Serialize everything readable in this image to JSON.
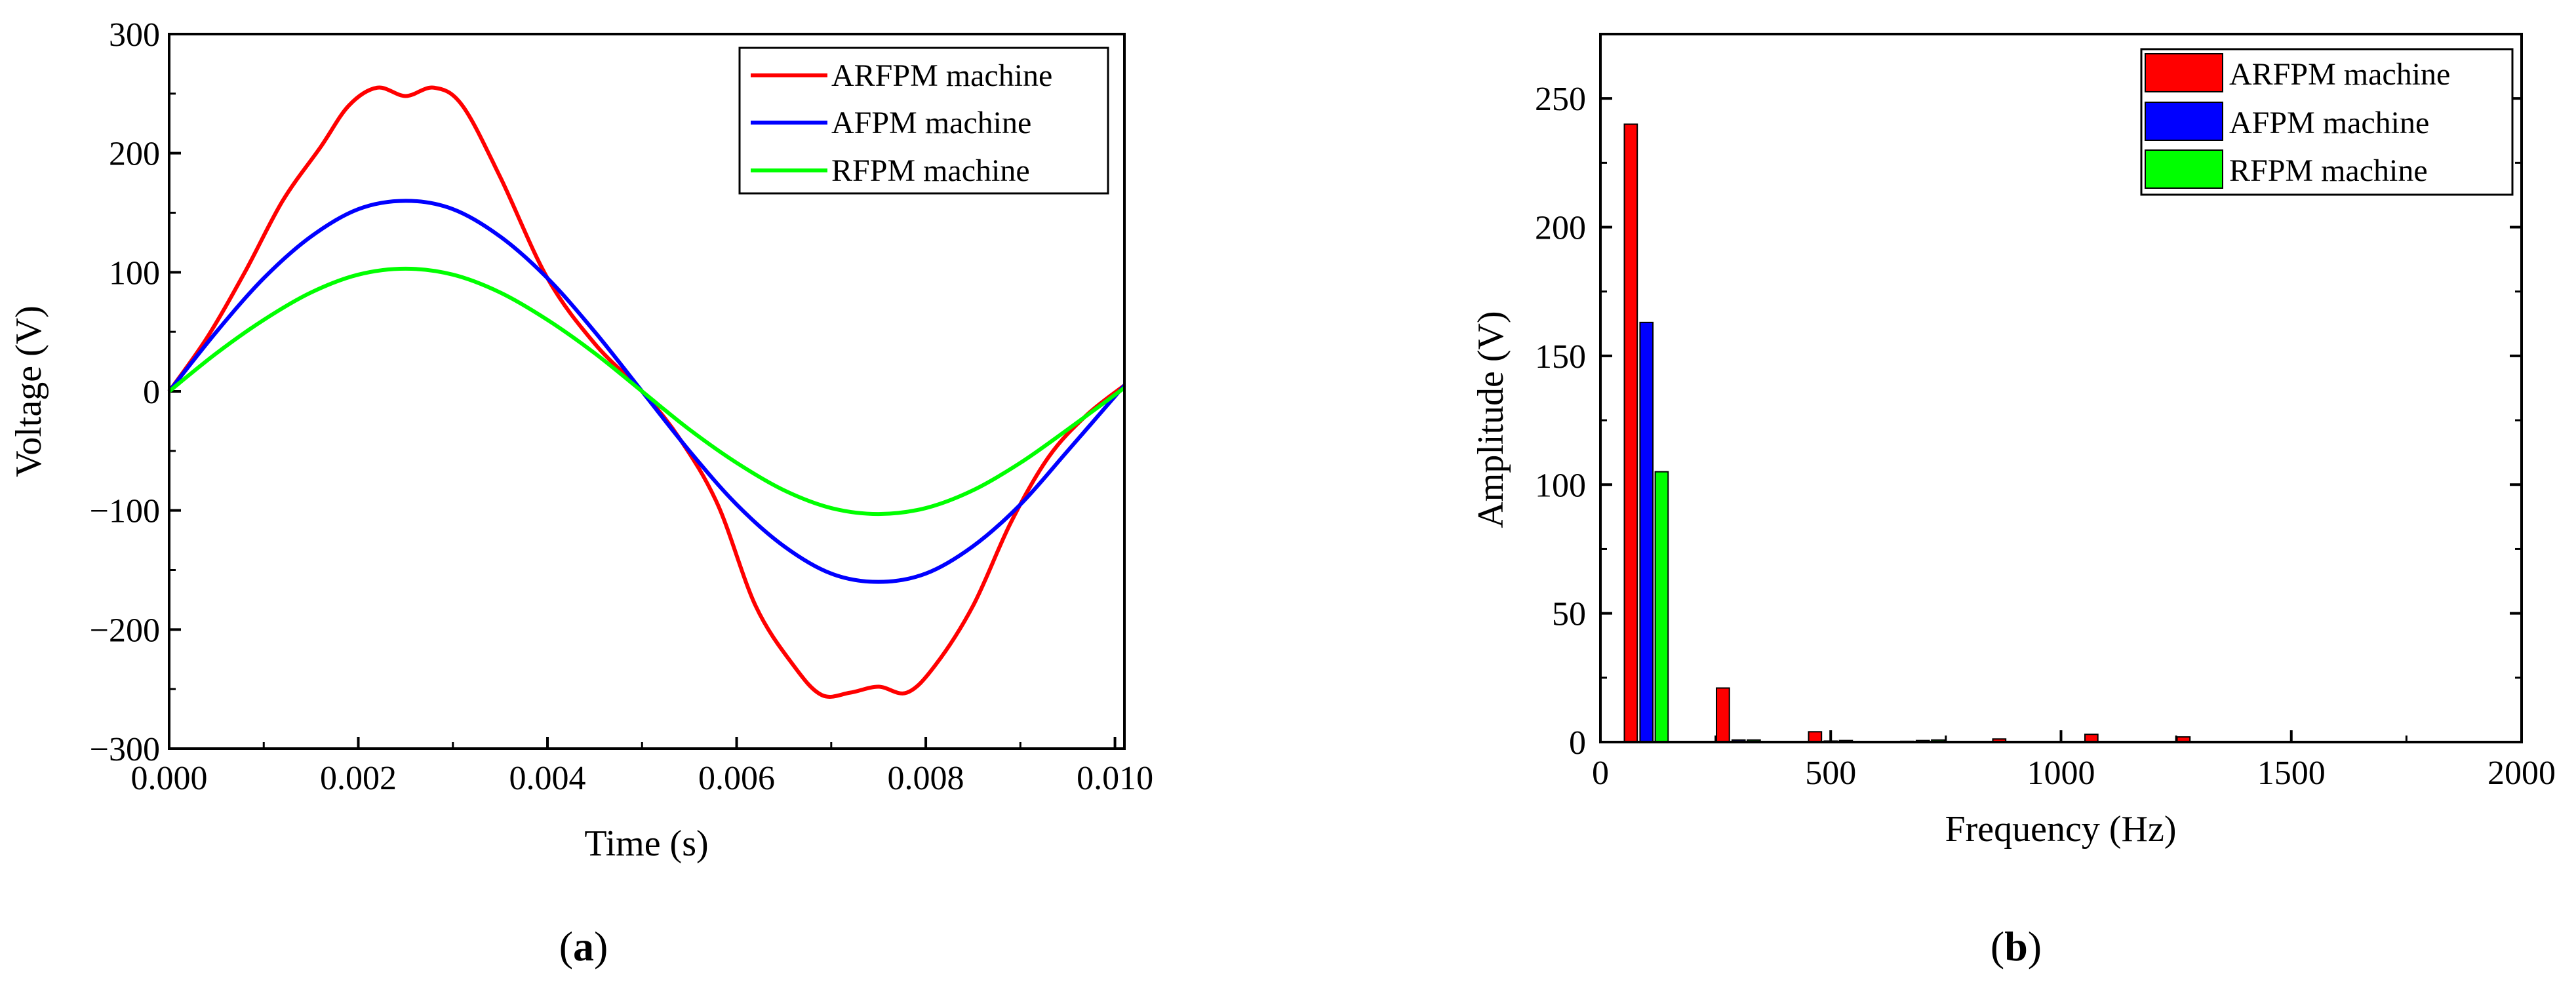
{
  "figure": {
    "panels": [
      {
        "label_open": "(",
        "label_letter": "a",
        "label_close": ")"
      },
      {
        "label_open": "(",
        "label_letter": "b",
        "label_close": ")"
      }
    ]
  },
  "colors": {
    "ARFPM": "#ff0000",
    "AFPM": "#0000ff",
    "RFPM": "#00ff00"
  },
  "chart_data": [
    {
      "type": "line",
      "title": "",
      "xlabel": "Time (s)",
      "ylabel": "Voltage (V)",
      "xlim": [
        0.0,
        0.0101
      ],
      "ylim": [
        -300,
        300
      ],
      "xticks": [
        0.0,
        0.002,
        0.004,
        0.006,
        0.008,
        0.01
      ],
      "xtick_labels": [
        "0.000",
        "0.002",
        "0.004",
        "0.006",
        "0.008",
        "0.010"
      ],
      "yticks": [
        -300,
        -200,
        -100,
        0,
        100,
        200,
        300
      ],
      "ytick_labels": [
        "−300",
        "−200",
        "−100",
        "0",
        "100",
        "200",
        "300"
      ],
      "legend_position": "top-right",
      "series": [
        {
          "name": "ARFPM machine",
          "color": "#ff0000",
          "x": [
            0.0,
            0.0004,
            0.0008,
            0.0012,
            0.0016,
            0.0019,
            0.0022,
            0.0025,
            0.0028,
            0.0031,
            0.0035,
            0.004,
            0.0045,
            0.005,
            0.0054,
            0.0058,
            0.0062,
            0.0066,
            0.0069,
            0.0072,
            0.0075,
            0.0078,
            0.0081,
            0.0085,
            0.0089,
            0.0093,
            0.0097,
            0.0101
          ],
          "y": [
            0,
            45,
            100,
            160,
            205,
            240,
            255,
            248,
            255,
            240,
            180,
            95,
            40,
            0,
            -40,
            -95,
            -180,
            -230,
            -255,
            -253,
            -248,
            -253,
            -230,
            -180,
            -110,
            -55,
            -20,
            5
          ]
        },
        {
          "name": "AFPM machine",
          "color": "#0000ff",
          "x": [
            0.0,
            0.0005,
            0.001,
            0.0015,
            0.002,
            0.0025,
            0.003,
            0.0035,
            0.004,
            0.0045,
            0.005,
            0.0055,
            0.006,
            0.0065,
            0.007,
            0.0075,
            0.008,
            0.0085,
            0.009,
            0.0095,
            0.0101
          ],
          "y": [
            0,
            50,
            95,
            130,
            153,
            160,
            153,
            130,
            95,
            50,
            0,
            -50,
            -95,
            -130,
            -153,
            -160,
            -153,
            -130,
            -95,
            -50,
            5
          ]
        },
        {
          "name": "RFPM machine",
          "color": "#00ff00",
          "x": [
            0.0,
            0.0005,
            0.001,
            0.0015,
            0.002,
            0.0025,
            0.003,
            0.0035,
            0.004,
            0.0045,
            0.005,
            0.0055,
            0.006,
            0.0065,
            0.007,
            0.0075,
            0.008,
            0.0085,
            0.009,
            0.0095,
            0.0101
          ],
          "y": [
            0,
            32,
            60,
            83,
            98,
            103,
            98,
            83,
            60,
            32,
            0,
            -32,
            -60,
            -83,
            -98,
            -103,
            -98,
            -83,
            -60,
            -32,
            3
          ]
        }
      ]
    },
    {
      "type": "bar",
      "title": "",
      "xlabel": "Frequency (Hz)",
      "ylabel": "Amplitude (V)",
      "xlim": [
        0,
        2000
      ],
      "ylim": [
        0,
        275
      ],
      "xticks": [
        0,
        500,
        1000,
        1500,
        2000
      ],
      "xtick_labels": [
        "0",
        "500",
        "1000",
        "1500",
        "2000"
      ],
      "yticks": [
        0,
        50,
        100,
        150,
        200,
        250
      ],
      "ytick_labels": [
        "0",
        "50",
        "100",
        "150",
        "200",
        "250"
      ],
      "bar_width_hz": 28,
      "legend_position": "top-right",
      "series": [
        {
          "name": "ARFPM machine",
          "color": "#ff0000",
          "x": [
            66,
            266,
            466,
            666,
            866,
            1066,
            1266
          ],
          "values": [
            240,
            21,
            4,
            0.3,
            1.2,
            3,
            2
          ]
        },
        {
          "name": "AFPM machine",
          "color": "#0000ff",
          "x": [
            100,
            300,
            500,
            700,
            900,
            1100,
            1300
          ],
          "values": [
            163,
            0.8,
            0.4,
            0.6,
            0.2,
            0.2,
            0.2
          ]
        },
        {
          "name": "RFPM machine",
          "color": "#00ff00",
          "x": [
            133,
            333,
            533,
            733,
            933,
            1133,
            1333
          ],
          "values": [
            105,
            0.8,
            0.6,
            0.8,
            0.2,
            0.2,
            0.2
          ]
        }
      ]
    }
  ]
}
